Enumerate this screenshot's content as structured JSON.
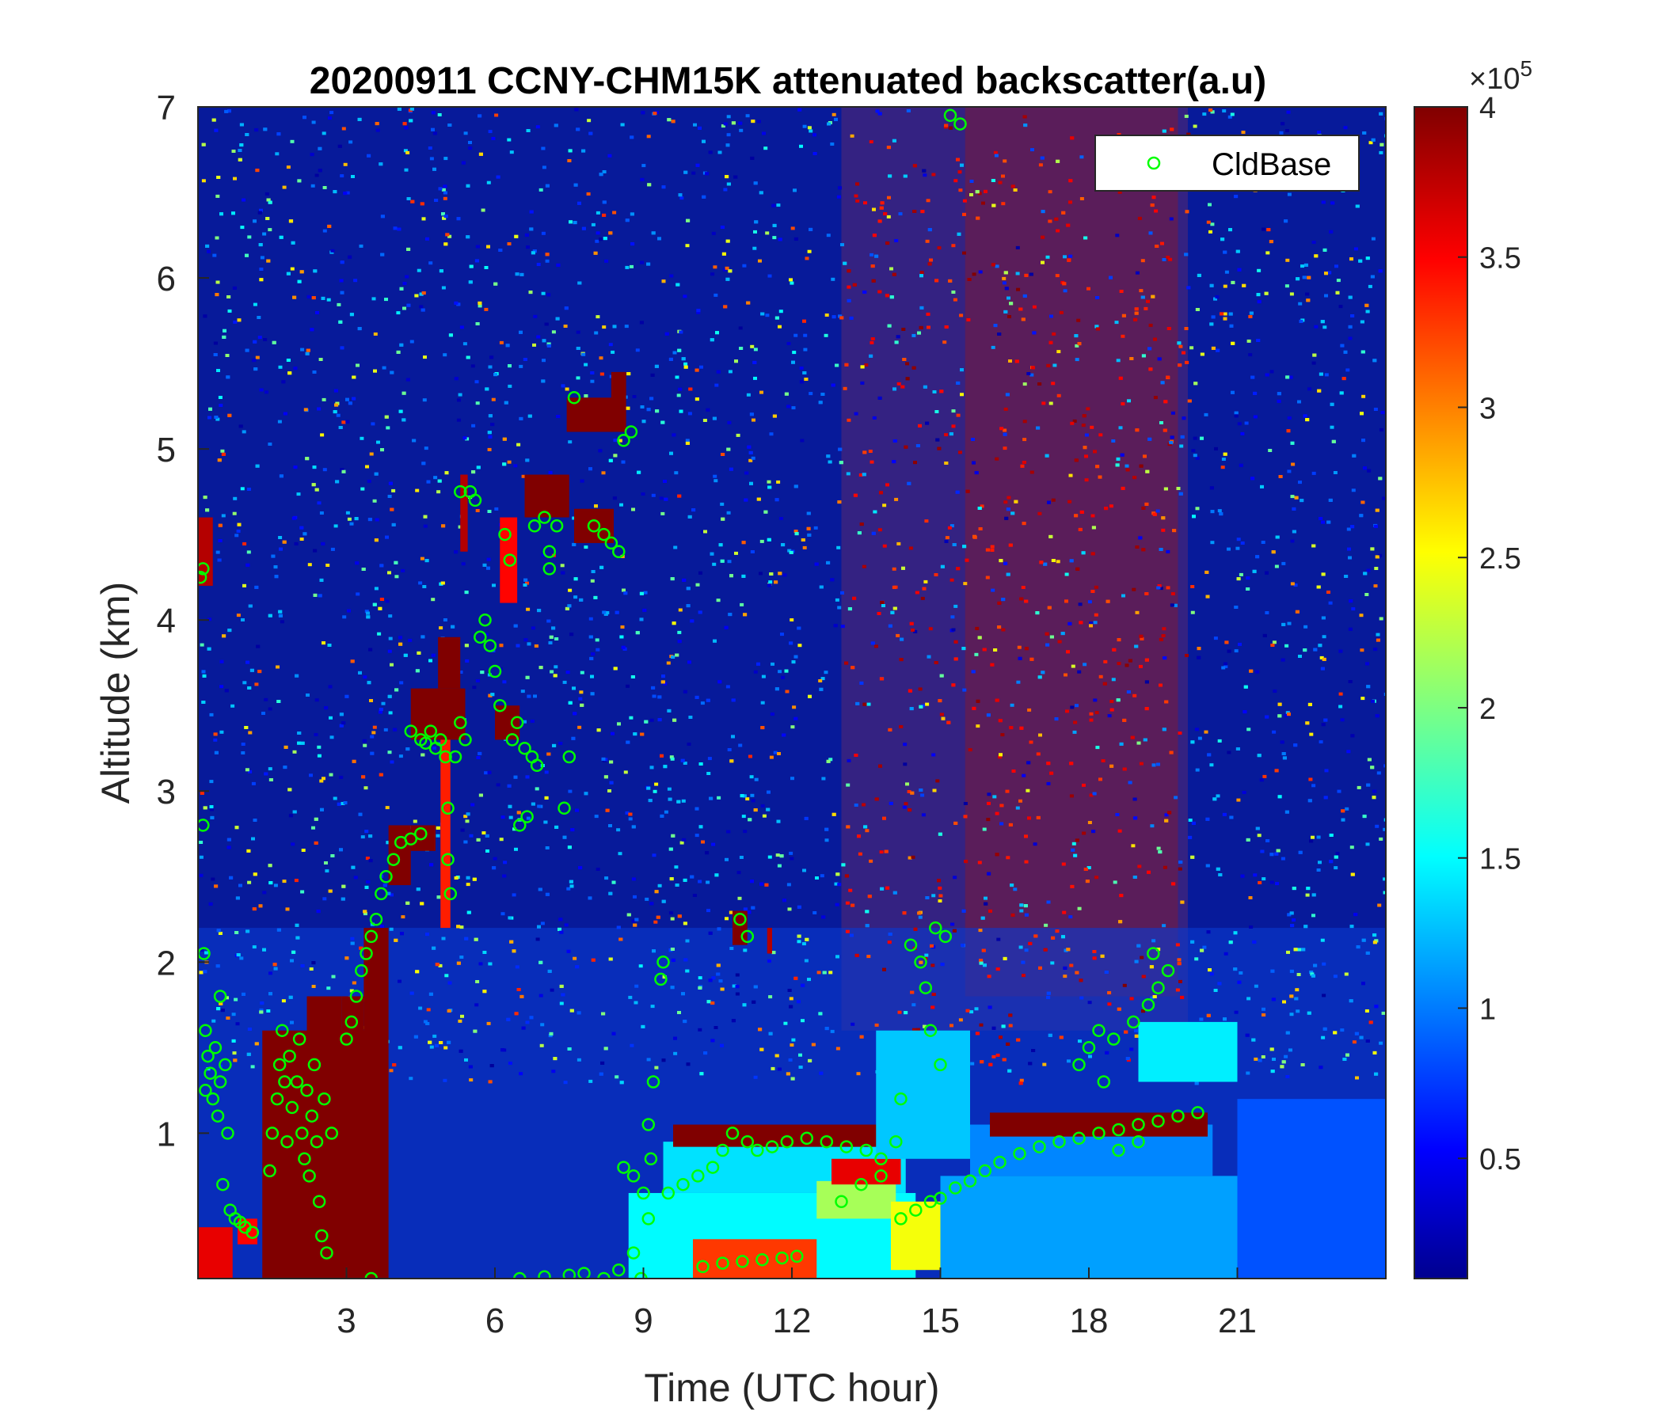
{
  "chart_data": {
    "type": "heatmap",
    "title": "20200911 CCNY-CHM15K attenuated backscatter(a.u)",
    "xlabel": "Time (UTC hour)",
    "ylabel": "Altitude (km)",
    "xlim": [
      0,
      24
    ],
    "ylim": [
      0.15,
      7
    ],
    "xticks": [
      3,
      6,
      9,
      12,
      15,
      18,
      21
    ],
    "yticks": [
      1,
      2,
      3,
      4,
      5,
      6,
      7
    ],
    "colorbar": {
      "colormap": "jet",
      "range": [
        0.1,
        4
      ],
      "ticks": [
        0.5,
        1,
        1.5,
        2,
        2.5,
        3,
        3.5,
        4
      ],
      "exponent_label": "×10",
      "exponent": "5"
    },
    "legend": {
      "placement": "top-right",
      "entries": [
        "CldBase"
      ]
    },
    "cloud_base_color": "#00ff00",
    "cloud_base_series": {
      "name": "CldBase",
      "points": [
        [
          0.05,
          4.25
        ],
        [
          0.1,
          4.3
        ],
        [
          0.1,
          2.8
        ],
        [
          0.12,
          2.05
        ],
        [
          0.15,
          1.6
        ],
        [
          0.15,
          1.25
        ],
        [
          0.2,
          1.45
        ],
        [
          0.25,
          1.35
        ],
        [
          0.3,
          1.2
        ],
        [
          0.35,
          1.5
        ],
        [
          0.4,
          1.1
        ],
        [
          0.45,
          1.3
        ],
        [
          0.45,
          1.8
        ],
        [
          0.5,
          0.7
        ],
        [
          0.55,
          1.4
        ],
        [
          0.6,
          1.0
        ],
        [
          0.65,
          0.55
        ],
        [
          0.75,
          0.5
        ],
        [
          0.85,
          0.48
        ],
        [
          0.95,
          0.45
        ],
        [
          1.1,
          0.42
        ],
        [
          1.45,
          0.78
        ],
        [
          1.5,
          1.0
        ],
        [
          1.6,
          1.2
        ],
        [
          1.65,
          1.4
        ],
        [
          1.7,
          1.6
        ],
        [
          1.75,
          1.3
        ],
        [
          1.8,
          0.95
        ],
        [
          1.85,
          1.45
        ],
        [
          1.9,
          1.15
        ],
        [
          2.0,
          1.3
        ],
        [
          2.05,
          1.55
        ],
        [
          2.1,
          1.0
        ],
        [
          2.15,
          0.85
        ],
        [
          2.2,
          1.25
        ],
        [
          2.25,
          0.75
        ],
        [
          2.3,
          1.1
        ],
        [
          2.35,
          1.4
        ],
        [
          2.4,
          0.95
        ],
        [
          2.45,
          0.6
        ],
        [
          2.5,
          0.4
        ],
        [
          2.55,
          1.2
        ],
        [
          2.6,
          0.3
        ],
        [
          2.7,
          1.0
        ],
        [
          3.0,
          1.55
        ],
        [
          3.1,
          1.65
        ],
        [
          3.2,
          1.8
        ],
        [
          3.3,
          1.95
        ],
        [
          3.4,
          2.05
        ],
        [
          3.5,
          2.15
        ],
        [
          3.6,
          2.25
        ],
        [
          3.7,
          2.4
        ],
        [
          3.8,
          2.5
        ],
        [
          3.95,
          2.6
        ],
        [
          4.1,
          2.7
        ],
        [
          4.3,
          2.72
        ],
        [
          4.5,
          2.75
        ],
        [
          3.5,
          0.15
        ],
        [
          4.3,
          3.35
        ],
        [
          4.5,
          3.3
        ],
        [
          4.6,
          3.28
        ],
        [
          4.7,
          3.35
        ],
        [
          4.8,
          3.25
        ],
        [
          4.9,
          3.3
        ],
        [
          5.0,
          3.2
        ],
        [
          5.05,
          2.9
        ],
        [
          5.05,
          2.6
        ],
        [
          5.1,
          2.4
        ],
        [
          5.2,
          3.2
        ],
        [
          5.3,
          3.4
        ],
        [
          5.4,
          3.3
        ],
        [
          5.3,
          4.75
        ],
        [
          5.5,
          4.75
        ],
        [
          5.6,
          4.7
        ],
        [
          5.7,
          3.9
        ],
        [
          5.8,
          4.0
        ],
        [
          5.9,
          3.85
        ],
        [
          6.0,
          3.7
        ],
        [
          6.1,
          3.5
        ],
        [
          6.2,
          4.5
        ],
        [
          6.3,
          4.35
        ],
        [
          6.35,
          3.3
        ],
        [
          6.45,
          3.4
        ],
        [
          6.6,
          3.25
        ],
        [
          6.75,
          3.2
        ],
        [
          6.85,
          3.15
        ],
        [
          6.5,
          2.8
        ],
        [
          6.65,
          2.85
        ],
        [
          6.8,
          4.55
        ],
        [
          7.0,
          4.6
        ],
        [
          7.1,
          4.4
        ],
        [
          7.25,
          4.55
        ],
        [
          7.4,
          2.9
        ],
        [
          7.5,
          3.2
        ],
        [
          7.1,
          4.3
        ],
        [
          7.6,
          5.3
        ],
        [
          8.0,
          4.55
        ],
        [
          8.2,
          4.5
        ],
        [
          8.35,
          4.45
        ],
        [
          8.5,
          4.4
        ],
        [
          8.6,
          5.05
        ],
        [
          8.75,
          5.1
        ],
        [
          6.5,
          0.15
        ],
        [
          7.0,
          0.16
        ],
        [
          7.5,
          0.17
        ],
        [
          7.8,
          0.18
        ],
        [
          8.2,
          0.15
        ],
        [
          8.5,
          0.2
        ],
        [
          8.6,
          0.8
        ],
        [
          8.8,
          0.75
        ],
        [
          9.0,
          0.65
        ],
        [
          8.8,
          0.3
        ],
        [
          8.95,
          0.15
        ],
        [
          9.1,
          0.5
        ],
        [
          9.15,
          0.85
        ],
        [
          9.1,
          1.05
        ],
        [
          9.2,
          1.3
        ],
        [
          9.35,
          1.9
        ],
        [
          9.4,
          2.0
        ],
        [
          9.5,
          0.65
        ],
        [
          9.8,
          0.7
        ],
        [
          10.1,
          0.75
        ],
        [
          10.4,
          0.8
        ],
        [
          10.6,
          0.9
        ],
        [
          10.8,
          1.0
        ],
        [
          11.1,
          0.95
        ],
        [
          11.3,
          0.9
        ],
        [
          11.6,
          0.92
        ],
        [
          11.9,
          0.95
        ],
        [
          12.3,
          0.97
        ],
        [
          12.7,
          0.95
        ],
        [
          13.1,
          0.92
        ],
        [
          13.5,
          0.9
        ],
        [
          13.8,
          0.85
        ],
        [
          14.1,
          0.95
        ],
        [
          14.2,
          1.2
        ],
        [
          10.2,
          0.22
        ],
        [
          10.6,
          0.24
        ],
        [
          11.0,
          0.25
        ],
        [
          11.4,
          0.26
        ],
        [
          11.8,
          0.27
        ],
        [
          12.1,
          0.28
        ],
        [
          10.95,
          2.25
        ],
        [
          11.1,
          2.15
        ],
        [
          13.0,
          0.6
        ],
        [
          13.4,
          0.7
        ],
        [
          13.8,
          0.75
        ],
        [
          14.2,
          0.5
        ],
        [
          14.5,
          0.55
        ],
        [
          14.8,
          0.6
        ],
        [
          15.0,
          0.62
        ],
        [
          15.3,
          0.68
        ],
        [
          15.6,
          0.72
        ],
        [
          15.9,
          0.78
        ],
        [
          16.2,
          0.83
        ],
        [
          16.6,
          0.88
        ],
        [
          17.0,
          0.92
        ],
        [
          17.4,
          0.95
        ],
        [
          17.8,
          0.97
        ],
        [
          18.2,
          1.0
        ],
        [
          18.6,
          1.02
        ],
        [
          19.0,
          1.05
        ],
        [
          19.4,
          1.07
        ],
        [
          19.8,
          1.1
        ],
        [
          20.2,
          1.12
        ],
        [
          14.4,
          2.1
        ],
        [
          14.6,
          2.0
        ],
        [
          14.7,
          1.85
        ],
        [
          14.9,
          2.2
        ],
        [
          15.1,
          2.15
        ],
        [
          14.8,
          1.6
        ],
        [
          15.0,
          1.4
        ],
        [
          15.2,
          6.95
        ],
        [
          15.4,
          6.9
        ],
        [
          17.8,
          1.4
        ],
        [
          18.0,
          1.5
        ],
        [
          18.2,
          1.6
        ],
        [
          18.5,
          1.55
        ],
        [
          18.9,
          1.65
        ],
        [
          19.2,
          1.75
        ],
        [
          19.4,
          1.85
        ],
        [
          19.6,
          1.95
        ],
        [
          19.3,
          2.05
        ],
        [
          18.3,
          1.3
        ],
        [
          18.6,
          0.9
        ],
        [
          19.0,
          0.95
        ]
      ]
    },
    "field_features": [
      {
        "t0": 0.0,
        "t1": 0.7,
        "z0": 0.15,
        "z1": 0.45,
        "v": 3.6
      },
      {
        "t0": 0.0,
        "t1": 0.3,
        "z0": 4.2,
        "z1": 4.6,
        "v": 3.8
      },
      {
        "t0": 0.8,
        "t1": 1.2,
        "z0": 0.35,
        "z1": 0.5,
        "v": 3.5
      },
      {
        "t0": 1.3,
        "t1": 3.6,
        "z0": 0.15,
        "z1": 1.6,
        "v": 4.0
      },
      {
        "t0": 2.2,
        "t1": 2.9,
        "z0": 0.8,
        "z1": 1.8,
        "v": 4.0
      },
      {
        "t0": 2.9,
        "t1": 3.35,
        "z0": 0.15,
        "z1": 1.8,
        "v": 4.0
      },
      {
        "t0": 3.35,
        "t1": 3.85,
        "z0": 0.15,
        "z1": 2.2,
        "v": 4.0
      },
      {
        "t0": 3.85,
        "t1": 4.3,
        "z0": 2.45,
        "z1": 2.8,
        "v": 4.0
      },
      {
        "t0": 4.3,
        "t1": 4.8,
        "z0": 2.65,
        "z1": 2.8,
        "v": 4.0
      },
      {
        "t0": 4.3,
        "t1": 5.4,
        "z0": 3.3,
        "z1": 3.6,
        "v": 4.0
      },
      {
        "t0": 4.85,
        "t1": 5.3,
        "z0": 3.6,
        "z1": 3.9,
        "v": 4.0
      },
      {
        "t0": 4.9,
        "t1": 5.1,
        "z0": 2.2,
        "z1": 3.3,
        "v": 3.4
      },
      {
        "t0": 5.3,
        "t1": 5.45,
        "z0": 4.4,
        "z1": 4.85,
        "v": 3.8
      },
      {
        "t0": 6.0,
        "t1": 6.5,
        "z0": 3.3,
        "z1": 3.5,
        "v": 4.0
      },
      {
        "t0": 6.1,
        "t1": 6.45,
        "z0": 4.1,
        "z1": 4.6,
        "v": 3.5
      },
      {
        "t0": 6.6,
        "t1": 7.5,
        "z0": 4.6,
        "z1": 4.85,
        "v": 4.0
      },
      {
        "t0": 7.6,
        "t1": 8.4,
        "z0": 4.45,
        "z1": 4.65,
        "v": 4.0
      },
      {
        "t0": 7.45,
        "t1": 8.4,
        "z0": 5.1,
        "z1": 5.3,
        "v": 4.0
      },
      {
        "t0": 8.35,
        "t1": 8.65,
        "z0": 5.1,
        "z1": 5.45,
        "v": 4.0
      },
      {
        "t0": 10.8,
        "t1": 11.1,
        "z0": 2.1,
        "z1": 2.3,
        "v": 4.0
      },
      {
        "t0": 11.5,
        "t1": 11.6,
        "z0": 2.05,
        "z1": 2.2,
        "v": 3.8
      },
      {
        "t0": 8.7,
        "t1": 14.5,
        "z0": 0.15,
        "z1": 0.65,
        "v": 1.55
      },
      {
        "t0": 9.4,
        "t1": 14.3,
        "z0": 0.65,
        "z1": 0.95,
        "v": 1.45
      },
      {
        "t0": 9.6,
        "t1": 14.3,
        "z0": 0.92,
        "z1": 1.05,
        "v": 4.0
      },
      {
        "t0": 10.0,
        "t1": 12.5,
        "z0": 0.15,
        "z1": 0.38,
        "v": 3.3
      },
      {
        "t0": 12.5,
        "t1": 14.1,
        "z0": 0.5,
        "z1": 0.72,
        "v": 2.2
      },
      {
        "t0": 12.8,
        "t1": 14.2,
        "z0": 0.7,
        "z1": 0.85,
        "v": 3.6
      },
      {
        "t0": 14.0,
        "t1": 15.0,
        "z0": 0.2,
        "z1": 0.6,
        "v": 2.5
      },
      {
        "t0": 13.7,
        "t1": 15.6,
        "z0": 0.85,
        "z1": 1.6,
        "v": 1.35
      },
      {
        "t0": 15.0,
        "t1": 21.5,
        "z0": 0.15,
        "z1": 0.75,
        "v": 1.2
      },
      {
        "t0": 15.6,
        "t1": 20.5,
        "z0": 0.75,
        "z1": 1.05,
        "v": 1.1
      },
      {
        "t0": 16.0,
        "t1": 20.4,
        "z0": 0.98,
        "z1": 1.12,
        "v": 4.0
      },
      {
        "t0": 19.0,
        "t1": 21.0,
        "z0": 1.3,
        "z1": 1.65,
        "v": 1.5
      },
      {
        "t0": 21.0,
        "t1": 24.0,
        "z0": 0.15,
        "z1": 1.2,
        "v": 0.9
      }
    ]
  }
}
